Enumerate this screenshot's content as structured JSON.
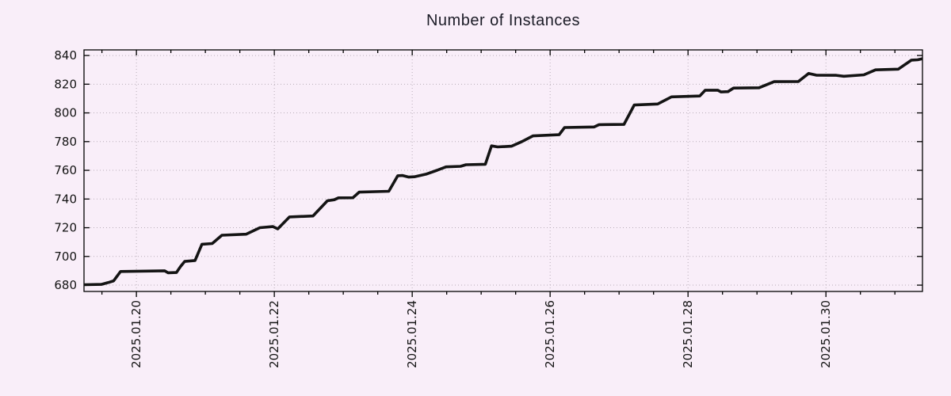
{
  "chart_data": {
    "type": "line",
    "title": "Number of Instances",
    "xlabel": "",
    "ylabel": "",
    "legend": "none",
    "grid": {
      "style": "dotted",
      "vertical_at_major_x": true,
      "horizontal_at_y_ticks": true
    },
    "colors": {
      "background": "#f9eef9",
      "grid": "#b9aeb9",
      "axis": "#000000",
      "text": "#141414",
      "title": "#1b1b26"
    },
    "x_axis": {
      "tick_labels": [
        "2025.01.20",
        "2025.01.22",
        "2025.01.24",
        "2025.01.26",
        "2025.01.28",
        "2025.01.30"
      ],
      "tick_days": [
        20,
        22,
        24,
        26,
        28,
        30
      ],
      "minor_tick_step_days": 0.5,
      "range_days": [
        19.24,
        31.4
      ]
    },
    "y_axis": {
      "ticks": [
        680,
        700,
        720,
        740,
        760,
        780,
        800,
        820,
        840
      ],
      "range": [
        675.6,
        843.9
      ]
    },
    "series": [
      {
        "name": "instances",
        "color": "#141414",
        "width": 3.6,
        "points": [
          [
            19.24,
            680.3
          ],
          [
            19.49,
            680.5
          ],
          [
            19.59,
            681.8
          ],
          [
            19.67,
            683.0
          ],
          [
            19.77,
            689.5
          ],
          [
            20.41,
            690.0
          ],
          [
            20.46,
            688.6
          ],
          [
            20.58,
            688.8
          ],
          [
            20.64,
            693.0
          ],
          [
            20.7,
            696.5
          ],
          [
            20.85,
            697.2
          ],
          [
            20.95,
            708.5
          ],
          [
            21.1,
            709.0
          ],
          [
            21.24,
            714.8
          ],
          [
            21.59,
            715.5
          ],
          [
            21.79,
            720.0
          ],
          [
            21.98,
            720.8
          ],
          [
            22.05,
            719.2
          ],
          [
            22.22,
            727.5
          ],
          [
            22.56,
            728.2
          ],
          [
            22.77,
            738.8
          ],
          [
            22.87,
            739.5
          ],
          [
            22.93,
            740.8
          ],
          [
            23.14,
            740.9
          ],
          [
            23.23,
            744.8
          ],
          [
            23.66,
            745.4
          ],
          [
            23.79,
            756.2
          ],
          [
            23.86,
            756.4
          ],
          [
            23.95,
            755.3
          ],
          [
            24.03,
            755.5
          ],
          [
            24.2,
            757.3
          ],
          [
            24.36,
            760.0
          ],
          [
            24.49,
            762.4
          ],
          [
            24.7,
            762.8
          ],
          [
            24.78,
            763.9
          ],
          [
            25.06,
            764.2
          ],
          [
            25.15,
            777.0
          ],
          [
            25.24,
            776.3
          ],
          [
            25.44,
            776.8
          ],
          [
            25.59,
            780.0
          ],
          [
            25.75,
            784.0
          ],
          [
            26.13,
            784.8
          ],
          [
            26.21,
            789.8
          ],
          [
            26.64,
            790.2
          ],
          [
            26.71,
            791.8
          ],
          [
            27.07,
            792.0
          ],
          [
            27.22,
            805.5
          ],
          [
            27.56,
            806.2
          ],
          [
            27.76,
            811.2
          ],
          [
            28.17,
            811.8
          ],
          [
            28.25,
            815.8
          ],
          [
            28.43,
            815.8
          ],
          [
            28.48,
            814.6
          ],
          [
            28.58,
            814.8
          ],
          [
            28.66,
            817.3
          ],
          [
            29.03,
            817.5
          ],
          [
            29.25,
            821.8
          ],
          [
            29.6,
            821.9
          ],
          [
            29.75,
            827.5
          ],
          [
            29.86,
            826.3
          ],
          [
            30.15,
            826.2
          ],
          [
            30.26,
            825.5
          ],
          [
            30.55,
            826.5
          ],
          [
            30.72,
            830.0
          ],
          [
            31.05,
            830.5
          ],
          [
            31.24,
            836.8
          ],
          [
            31.33,
            837.0
          ],
          [
            31.4,
            837.8
          ]
        ]
      }
    ]
  }
}
